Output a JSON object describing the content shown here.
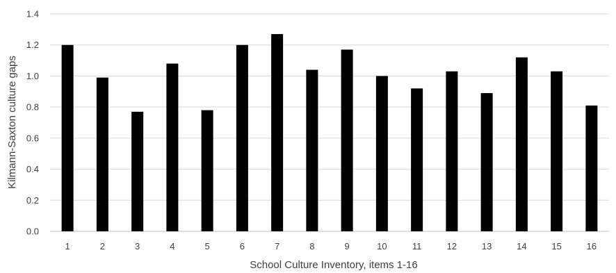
{
  "chart_data": {
    "type": "bar",
    "categories": [
      "1",
      "2",
      "3",
      "4",
      "5",
      "6",
      "7",
      "8",
      "9",
      "10",
      "11",
      "12",
      "13",
      "14",
      "15",
      "16"
    ],
    "values": [
      1.2,
      0.99,
      0.77,
      1.08,
      0.78,
      1.2,
      1.27,
      1.04,
      1.17,
      1.0,
      0.92,
      1.03,
      0.89,
      1.12,
      1.03,
      0.81
    ],
    "title": "",
    "xlabel": "School Culture Inventory, items 1-16",
    "ylabel": "Kilmann-Saxton culture gaps",
    "ylim": [
      0,
      1.4
    ],
    "yticks": [
      "0.0",
      "0.2",
      "0.4",
      "0.6",
      "0.8",
      "1.0",
      "1.2",
      "1.4"
    ],
    "grid": true,
    "legend": "none",
    "bar_color": "#000000"
  }
}
